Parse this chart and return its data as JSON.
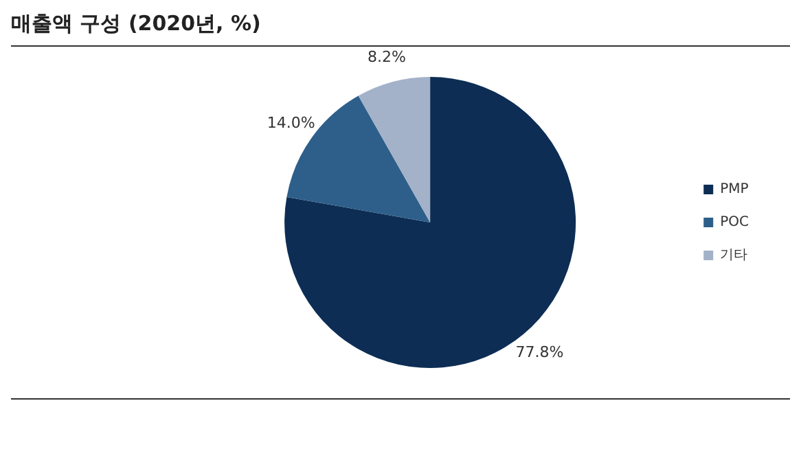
{
  "chart_data": {
    "type": "pie",
    "title": "매출액 구성 (2020년, %)",
    "categories": [
      "PMP",
      "POC",
      "기타"
    ],
    "values": [
      77.8,
      14.0,
      8.2
    ],
    "value_labels": [
      "77.8%",
      "14.0%",
      "8.2%"
    ],
    "colors": [
      "#0d2d54",
      "#2d5f8a",
      "#a3b1c9"
    ],
    "legend": "right"
  }
}
